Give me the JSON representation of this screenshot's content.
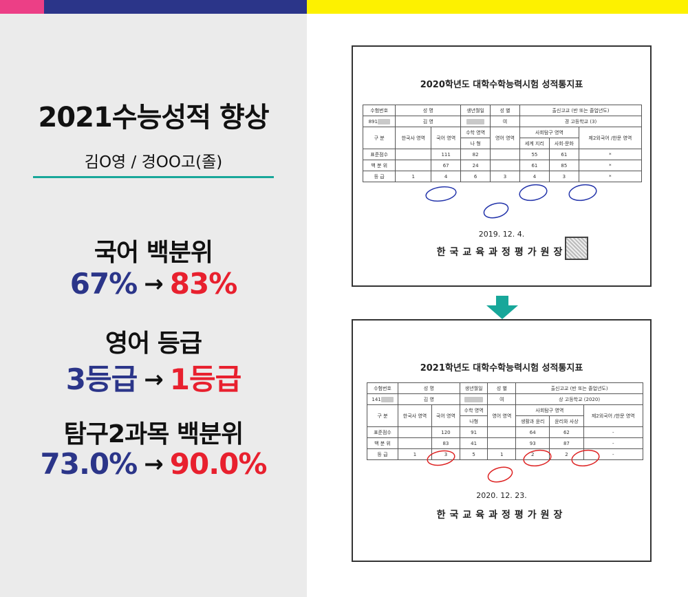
{
  "colors": {
    "pink": "#ec3f86",
    "navy": "#2b3589",
    "yellow": "#fdf100",
    "panel": "#ebebeb",
    "teal": "#18a79a",
    "red": "#e8202e"
  },
  "left": {
    "headline": "2021수능성적 향상",
    "subline": "김O영 / 경OO고(졸)",
    "stats": [
      {
        "label": "국어 백분위",
        "from": "67%",
        "arrow": "→",
        "to": "83%"
      },
      {
        "label": "영어 등급",
        "from": "3등급",
        "arrow": "→",
        "to": "1등급"
      },
      {
        "label": "탐구2과목 백분위",
        "from": "73.0%",
        "arrow": "→",
        "to": "90.0%"
      }
    ]
  },
  "doc1": {
    "title": "2020학년도 대학수학능력시험 성적통지표",
    "header": {
      "exam_no": "수험번호",
      "name": "성 명",
      "birth": "생년월일",
      "sex": "성 별",
      "school": "출신고교 (반 또는 졸업년도)"
    },
    "info": {
      "exam_no": "891",
      "name": "김 영",
      "sex": "여",
      "school": "경 고등학교 (3)"
    },
    "subjects": {
      "category": "구 분",
      "history": "한국사 영역",
      "korean": "국어 영역",
      "math": "수학 영역",
      "math_type": "나 형",
      "english": "영어 영역",
      "social": "사회탐구 영역",
      "sub1": "세계 지리",
      "sub2": "사회·문화",
      "foreign": "제2외국어 /한문 영역"
    },
    "rows": [
      {
        "label": "표준점수",
        "history": "",
        "korean": "111",
        "math": "82",
        "english": "",
        "sub1": "55",
        "sub2": "61",
        "foreign": "*"
      },
      {
        "label": "백 분 위",
        "history": "",
        "korean": "67",
        "math": "24",
        "english": "",
        "sub1": "61",
        "sub2": "85",
        "foreign": "*"
      },
      {
        "label": "등 급",
        "history": "1",
        "korean": "4",
        "math": "6",
        "english": "3",
        "sub1": "4",
        "sub2": "3",
        "foreign": "*"
      }
    ],
    "date": "2019. 12. 4.",
    "issuer": "한국교육과정평가원장",
    "seal_text": "장"
  },
  "doc2": {
    "title": "2021학년도 대학수학능력시험 성적통지표",
    "header": {
      "exam_no": "수험번호",
      "name": "성 명",
      "birth": "생년월일",
      "sex": "성 별",
      "school": "출신고교 (반 또는 졸업년도)"
    },
    "info": {
      "exam_no": "141",
      "name": "김 영",
      "sex": "여",
      "school": "상 고등학교 (2020)"
    },
    "subjects": {
      "category": "구 분",
      "history": "한국사 영역",
      "korean": "국어 영역",
      "math": "수학 영역",
      "math_type": "나형",
      "english": "영어 영역",
      "social": "사회탐구 영역",
      "sub1": "생활과 윤리",
      "sub2": "윤리와 사상",
      "foreign": "제2외국어 /한문 영역"
    },
    "rows": [
      {
        "label": "표준점수",
        "history": "",
        "korean": "120",
        "math": "91",
        "english": "",
        "sub1": "64",
        "sub2": "62",
        "foreign": "-"
      },
      {
        "label": "백 분 위",
        "history": "",
        "korean": "83",
        "math": "41",
        "english": "",
        "sub1": "93",
        "sub2": "87",
        "foreign": "-"
      },
      {
        "label": "등 급",
        "history": "1",
        "korean": "3",
        "math": "5",
        "english": "1",
        "sub1": "2",
        "sub2": "2",
        "foreign": "-"
      }
    ],
    "date": "2020. 12. 23.",
    "issuer": "한국교육과정평가원장"
  }
}
